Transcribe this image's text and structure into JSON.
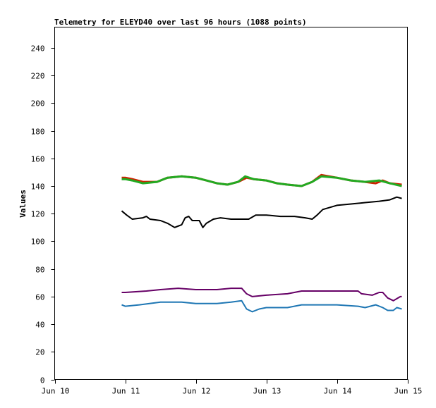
{
  "chart_data": {
    "type": "line",
    "title": "Telemetry for ELEYD40 over last 96 hours (1088 points)",
    "xlabel": "",
    "ylabel": "Values",
    "ylim": [
      0,
      255
    ],
    "yticks": [
      0,
      20,
      40,
      60,
      80,
      100,
      120,
      140,
      160,
      180,
      200,
      220,
      240
    ],
    "xlim": [
      "Jun 10",
      "Jun 15"
    ],
    "xticks": [
      "Jun 10",
      "Jun 11",
      "Jun 12",
      "Jun 13",
      "Jun 14",
      "Jun 15"
    ],
    "grid": false,
    "series": [
      {
        "color": "#cc2200",
        "points": [
          [
            0.95,
            146
          ],
          [
            1.0,
            146
          ],
          [
            1.1,
            145
          ],
          [
            1.25,
            143
          ],
          [
            1.45,
            143
          ],
          [
            1.6,
            146
          ],
          [
            1.8,
            147
          ],
          [
            2.0,
            146
          ],
          [
            2.15,
            144
          ],
          [
            2.3,
            142
          ],
          [
            2.45,
            141
          ],
          [
            2.6,
            143
          ],
          [
            2.72,
            146
          ],
          [
            2.82,
            145
          ],
          [
            3.0,
            144
          ],
          [
            3.15,
            142
          ],
          [
            3.3,
            141
          ],
          [
            3.5,
            140
          ],
          [
            3.65,
            143
          ],
          [
            3.78,
            148
          ],
          [
            4.0,
            146
          ],
          [
            4.2,
            144
          ],
          [
            4.4,
            143
          ],
          [
            4.55,
            142
          ],
          [
            4.65,
            144
          ],
          [
            4.75,
            142
          ],
          [
            4.92,
            141
          ]
        ]
      },
      {
        "color": "#22aa22",
        "points": [
          [
            0.95,
            145
          ],
          [
            1.0,
            145
          ],
          [
            1.1,
            144
          ],
          [
            1.25,
            142
          ],
          [
            1.45,
            143
          ],
          [
            1.6,
            146
          ],
          [
            1.8,
            147
          ],
          [
            2.0,
            146
          ],
          [
            2.15,
            144
          ],
          [
            2.3,
            142
          ],
          [
            2.45,
            141
          ],
          [
            2.6,
            143
          ],
          [
            2.7,
            147
          ],
          [
            2.82,
            145
          ],
          [
            3.0,
            144
          ],
          [
            3.15,
            142
          ],
          [
            3.3,
            141
          ],
          [
            3.5,
            140
          ],
          [
            3.65,
            143
          ],
          [
            3.78,
            147
          ],
          [
            4.0,
            146
          ],
          [
            4.2,
            144
          ],
          [
            4.4,
            143
          ],
          [
            4.6,
            144
          ],
          [
            4.75,
            142
          ],
          [
            4.92,
            140
          ]
        ]
      },
      {
        "color": "#000000",
        "points": [
          [
            0.95,
            122
          ],
          [
            1.02,
            119
          ],
          [
            1.1,
            116
          ],
          [
            1.25,
            117
          ],
          [
            1.3,
            118
          ],
          [
            1.35,
            116
          ],
          [
            1.5,
            115
          ],
          [
            1.6,
            113
          ],
          [
            1.7,
            110
          ],
          [
            1.8,
            112
          ],
          [
            1.85,
            117
          ],
          [
            1.9,
            118
          ],
          [
            1.95,
            115
          ],
          [
            2.05,
            115
          ],
          [
            2.1,
            110
          ],
          [
            2.15,
            113
          ],
          [
            2.25,
            116
          ],
          [
            2.35,
            117
          ],
          [
            2.5,
            116
          ],
          [
            2.75,
            116
          ],
          [
            2.85,
            119
          ],
          [
            3.0,
            119
          ],
          [
            3.2,
            118
          ],
          [
            3.4,
            118
          ],
          [
            3.55,
            117
          ],
          [
            3.65,
            116
          ],
          [
            3.72,
            119
          ],
          [
            3.8,
            123
          ],
          [
            4.0,
            126
          ],
          [
            4.2,
            127
          ],
          [
            4.4,
            128
          ],
          [
            4.6,
            129
          ],
          [
            4.75,
            130
          ],
          [
            4.85,
            132
          ],
          [
            4.92,
            131
          ]
        ]
      },
      {
        "color": "#660066",
        "points": [
          [
            0.95,
            63
          ],
          [
            1.0,
            63
          ],
          [
            1.3,
            64
          ],
          [
            1.5,
            65
          ],
          [
            1.75,
            66
          ],
          [
            2.0,
            65
          ],
          [
            2.3,
            65
          ],
          [
            2.5,
            66
          ],
          [
            2.65,
            66
          ],
          [
            2.72,
            62
          ],
          [
            2.8,
            60
          ],
          [
            3.0,
            61
          ],
          [
            3.3,
            62
          ],
          [
            3.5,
            64
          ],
          [
            3.8,
            64
          ],
          [
            4.0,
            64
          ],
          [
            4.3,
            64
          ],
          [
            4.35,
            62
          ],
          [
            4.5,
            61
          ],
          [
            4.6,
            63
          ],
          [
            4.65,
            63
          ],
          [
            4.72,
            59
          ],
          [
            4.8,
            57
          ],
          [
            4.9,
            60
          ],
          [
            4.92,
            60
          ]
        ]
      },
      {
        "color": "#1f77b4",
        "points": [
          [
            0.95,
            54
          ],
          [
            1.0,
            53
          ],
          [
            1.2,
            54
          ],
          [
            1.5,
            56
          ],
          [
            1.8,
            56
          ],
          [
            2.0,
            55
          ],
          [
            2.3,
            55
          ],
          [
            2.5,
            56
          ],
          [
            2.65,
            57
          ],
          [
            2.72,
            51
          ],
          [
            2.8,
            49
          ],
          [
            2.9,
            51
          ],
          [
            3.0,
            52
          ],
          [
            3.3,
            52
          ],
          [
            3.5,
            54
          ],
          [
            3.8,
            54
          ],
          [
            4.0,
            54
          ],
          [
            4.3,
            53
          ],
          [
            4.4,
            52
          ],
          [
            4.55,
            54
          ],
          [
            4.65,
            52
          ],
          [
            4.72,
            50
          ],
          [
            4.8,
            50
          ],
          [
            4.85,
            52
          ],
          [
            4.92,
            51
          ]
        ]
      }
    ]
  }
}
